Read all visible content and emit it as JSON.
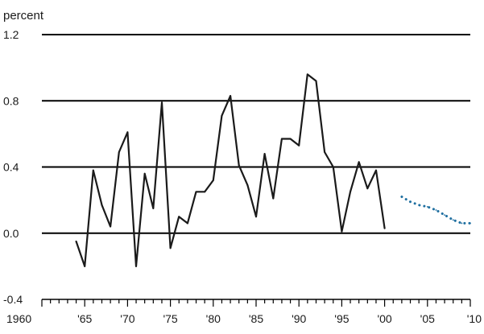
{
  "chart_data": {
    "type": "line",
    "title": "",
    "xlabel": "",
    "ylabel": "percent",
    "ylim": [
      -0.4,
      1.2
    ],
    "xlim": [
      1960,
      2010
    ],
    "y_ticks": [
      {
        "value": 1.2,
        "label": "1.2"
      },
      {
        "value": 0.8,
        "label": "0.8"
      },
      {
        "value": 0.4,
        "label": "0.4"
      },
      {
        "value": 0.0,
        "label": "0.0"
      },
      {
        "value": -0.4,
        "label": "-0.4"
      }
    ],
    "x_ticks": [
      {
        "value": 1960,
        "label": "1960"
      },
      {
        "value": 1965,
        "label": "'65"
      },
      {
        "value": 1970,
        "label": "'70"
      },
      {
        "value": 1975,
        "label": "'75"
      },
      {
        "value": 1980,
        "label": "'80"
      },
      {
        "value": 1985,
        "label": "'85"
      },
      {
        "value": 1990,
        "label": "'90"
      },
      {
        "value": 1995,
        "label": "'95"
      },
      {
        "value": 2000,
        "label": "'00"
      },
      {
        "value": 2005,
        "label": "'05"
      },
      {
        "value": 2010,
        "label": "'10"
      }
    ],
    "grid": {
      "horizontal": true,
      "vertical": false
    },
    "series": [
      {
        "style": "solid",
        "color": "#1a1a1a",
        "x": [
          1964,
          1965,
          1966,
          1967,
          1968,
          1969,
          1970,
          1971,
          1972,
          1973,
          1974,
          1975,
          1976,
          1977,
          1978,
          1979,
          1980,
          1981,
          1982,
          1983,
          1984,
          1985,
          1986,
          1987,
          1988,
          1989,
          1990,
          1991,
          1992,
          1993,
          1994,
          1995,
          1996,
          1997,
          1998,
          1999,
          2000
        ],
        "y": [
          -0.05,
          -0.2,
          0.38,
          0.17,
          0.04,
          0.49,
          0.61,
          -0.2,
          0.36,
          0.15,
          0.79,
          -0.09,
          0.1,
          0.06,
          0.25,
          0.25,
          0.32,
          0.71,
          0.83,
          0.41,
          0.29,
          0.1,
          0.48,
          0.21,
          0.57,
          0.57,
          0.53,
          0.96,
          0.92,
          0.49,
          0.4,
          0.01,
          0.25,
          0.43,
          0.27,
          0.38,
          0.03
        ]
      },
      {
        "style": "dotted",
        "color": "#1f6fa0",
        "x": [
          2002,
          2003,
          2004,
          2005,
          2006,
          2007,
          2008,
          2009,
          2010
        ],
        "y": [
          0.22,
          0.19,
          0.17,
          0.16,
          0.14,
          0.11,
          0.08,
          0.06,
          0.06
        ]
      }
    ]
  }
}
